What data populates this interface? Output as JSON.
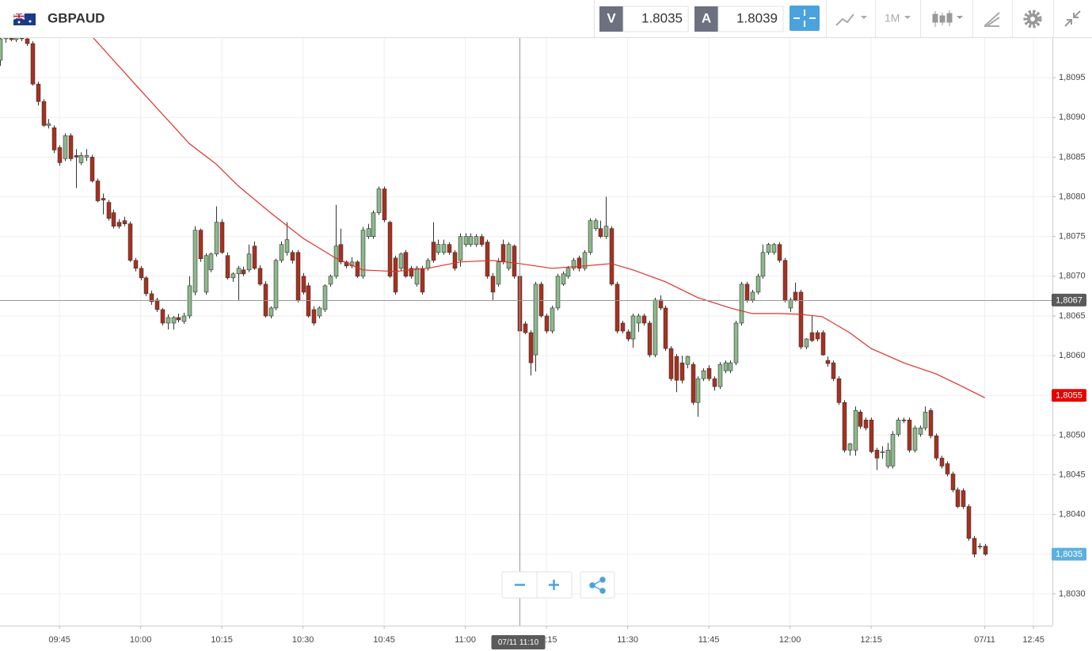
{
  "toolbar": {
    "symbol": "GBPAUD",
    "bid_label": "V",
    "bid": 1.8035,
    "ask_label": "A",
    "ask": 1.8039,
    "period": "1M"
  },
  "chart_data": {
    "type": "candlestick",
    "up_color": "#8cb98a",
    "down_color": "#a8301f",
    "wick_color": "#333333",
    "grid": true,
    "xlim": [
      0,
      194.5
    ],
    "ylim": [
      1.8026,
      1.81
    ],
    "xticks": [
      {
        "value": 11,
        "label": "09:45"
      },
      {
        "value": 26,
        "label": "10:00"
      },
      {
        "value": 41,
        "label": "10:15"
      },
      {
        "value": 56,
        "label": "10:30"
      },
      {
        "value": 71,
        "label": "10:45"
      },
      {
        "value": 86,
        "label": "11:00"
      },
      {
        "value": 101,
        "label": "11:15"
      },
      {
        "value": 116,
        "label": "11:30"
      },
      {
        "value": 131,
        "label": "11:45"
      },
      {
        "value": 146,
        "label": "12:00"
      },
      {
        "value": 161,
        "label": "12:15"
      },
      {
        "value": 182,
        "label": "07/11"
      },
      {
        "value": 191,
        "label": "12:45"
      }
    ],
    "yticks": [
      {
        "value": 1.803,
        "label": "1,8030"
      },
      {
        "value": 1.8035,
        "label": "1,8035"
      },
      {
        "value": 1.804,
        "label": "1,8040"
      },
      {
        "value": 1.8045,
        "label": "1,8045"
      },
      {
        "value": 1.805,
        "label": "1,8050"
      },
      {
        "value": 1.8055,
        "label": "1,8055"
      },
      {
        "value": 1.806,
        "label": "1,8060"
      },
      {
        "value": 1.8065,
        "label": "1,8065"
      },
      {
        "value": 1.807,
        "label": "1,8070"
      },
      {
        "value": 1.8075,
        "label": "1,8075"
      },
      {
        "value": 1.808,
        "label": "1,8080"
      },
      {
        "value": 1.8085,
        "label": "1,8085"
      },
      {
        "value": 1.809,
        "label": "1,8090"
      },
      {
        "value": 1.8095,
        "label": "1,8095"
      }
    ],
    "ohlc": [
      [
        1.80972,
        1.81005,
        1.80965,
        1.80999
      ],
      [
        1.80999,
        1.81006,
        1.80994,
        1.81002
      ],
      [
        1.81002,
        1.81006,
        1.80996,
        1.80998
      ],
      [
        1.80998,
        1.81005,
        1.80995,
        1.81003
      ],
      [
        1.81003,
        1.81006,
        1.80996,
        1.80999
      ],
      [
        1.80999,
        1.81004,
        1.8099,
        1.80993
      ],
      [
        1.80993,
        1.80996,
        1.8094,
        1.80942
      ],
      [
        1.80942,
        1.80945,
        1.80915,
        1.8092
      ],
      [
        1.8092,
        1.80923,
        1.80888,
        1.8089
      ],
      [
        1.8089,
        1.80898,
        1.80886,
        1.80892
      ],
      [
        1.80887,
        1.8089,
        1.80855,
        1.80859
      ],
      [
        1.80862,
        1.80865,
        1.80839,
        1.80843
      ],
      [
        1.80848,
        1.8088,
        1.80845,
        1.80877
      ],
      [
        1.80877,
        1.8088,
        1.80845,
        1.80848
      ],
      [
        1.80852,
        1.8086,
        1.80811,
        1.8085
      ],
      [
        1.80843,
        1.80856,
        1.8084,
        1.80852
      ],
      [
        1.8085,
        1.8086,
        1.80845,
        1.80852
      ],
      [
        1.8085,
        1.80853,
        1.80818,
        1.8082
      ],
      [
        1.8082,
        1.80823,
        1.80793,
        1.80795
      ],
      [
        1.80798,
        1.80804,
        1.80778,
        1.80796
      ],
      [
        1.80793,
        1.80796,
        1.8077,
        1.80773
      ],
      [
        1.8078,
        1.80784,
        1.8076,
        1.80763
      ],
      [
        1.80768,
        1.80772,
        1.8076,
        1.80763
      ],
      [
        1.8077,
        1.80775,
        1.80763,
        1.80766
      ],
      [
        1.80766,
        1.80769,
        1.80718,
        1.8072
      ],
      [
        1.8072,
        1.80723,
        1.80706,
        1.8071
      ],
      [
        1.8071,
        1.80713,
        1.80695,
        1.80698
      ],
      [
        1.80698,
        1.807,
        1.80675,
        1.80678
      ],
      [
        1.80678,
        1.80682,
        1.80664,
        1.80668
      ],
      [
        1.8067,
        1.80673,
        1.80655,
        1.80658
      ],
      [
        1.80658,
        1.8066,
        1.80638,
        1.80641
      ],
      [
        1.80641,
        1.80652,
        1.80633,
        1.80648
      ],
      [
        1.80641,
        1.8065,
        1.80633,
        1.80648
      ],
      [
        1.80648,
        1.80653,
        1.80642,
        1.80645
      ],
      [
        1.80643,
        1.80654,
        1.8064,
        1.8065
      ],
      [
        1.8065,
        1.807,
        1.80647,
        1.80688
      ],
      [
        1.8068,
        1.80763,
        1.80676,
        1.80758
      ],
      [
        1.80758,
        1.8076,
        1.80718,
        1.80722
      ],
      [
        1.8068,
        1.80729,
        1.80677,
        1.80726
      ],
      [
        1.80708,
        1.8073,
        1.80705,
        1.80728
      ],
      [
        1.80728,
        1.80788,
        1.80725,
        1.80768
      ],
      [
        1.80768,
        1.80772,
        1.80728,
        1.8073
      ],
      [
        1.80726,
        1.8073,
        1.80696,
        1.80698
      ],
      [
        1.80698,
        1.80705,
        1.80693,
        1.80703
      ],
      [
        1.80703,
        1.80713,
        1.8067,
        1.8071
      ],
      [
        1.80708,
        1.80712,
        1.807,
        1.80703
      ],
      [
        1.80708,
        1.8074,
        1.80705,
        1.80728
      ],
      [
        1.80738,
        1.80744,
        1.80708,
        1.8071
      ],
      [
        1.8071,
        1.80714,
        1.80688,
        1.8069
      ],
      [
        1.8069,
        1.80694,
        1.80648,
        1.8065
      ],
      [
        1.8065,
        1.80662,
        1.80647,
        1.8066
      ],
      [
        1.8066,
        1.80722,
        1.80657,
        1.8072
      ],
      [
        1.8072,
        1.80744,
        1.80717,
        1.8074
      ],
      [
        1.8073,
        1.80768,
        1.80726,
        1.80746
      ],
      [
        1.8073,
        1.80733,
        1.80716,
        1.8072
      ],
      [
        1.8073,
        1.80733,
        1.80667,
        1.8067
      ],
      [
        1.807,
        1.80704,
        1.80677,
        1.8068
      ],
      [
        1.80688,
        1.80692,
        1.80648,
        1.8065
      ],
      [
        1.80658,
        1.80662,
        1.80638,
        1.80641
      ],
      [
        1.8065,
        1.80662,
        1.80647,
        1.8066
      ],
      [
        1.80658,
        1.8069,
        1.80655,
        1.80688
      ],
      [
        1.8069,
        1.80702,
        1.80687,
        1.807
      ],
      [
        1.807,
        1.8079,
        1.80697,
        1.80738
      ],
      [
        1.8074,
        1.8076,
        1.80715,
        1.80718
      ],
      [
        1.80718,
        1.8072,
        1.8071,
        1.80713
      ],
      [
        1.80713,
        1.80724,
        1.8071,
        1.80718
      ],
      [
        1.80718,
        1.8072,
        1.80698,
        1.807
      ],
      [
        1.807,
        1.80762,
        1.80697,
        1.80758
      ],
      [
        1.8075,
        1.80766,
        1.80747,
        1.8076
      ],
      [
        1.8075,
        1.80783,
        1.80747,
        1.8078
      ],
      [
        1.8078,
        1.80813,
        1.80777,
        1.8081
      ],
      [
        1.8081,
        1.80813,
        1.80768,
        1.80771
      ],
      [
        1.80768,
        1.8077,
        1.80698,
        1.807
      ],
      [
        1.80723,
        1.80726,
        1.80677,
        1.8068
      ],
      [
        1.8071,
        1.8073,
        1.80707,
        1.80728
      ],
      [
        1.8073,
        1.80733,
        1.80698,
        1.807
      ],
      [
        1.8071,
        1.80713,
        1.80697,
        1.807
      ],
      [
        1.8069,
        1.80713,
        1.80687,
        1.8071
      ],
      [
        1.8071,
        1.80713,
        1.80677,
        1.8068
      ],
      [
        1.8071,
        1.80723,
        1.80707,
        1.8072
      ],
      [
        1.80743,
        1.80768,
        1.80717,
        1.8072
      ],
      [
        1.8073,
        1.80746,
        1.80727,
        1.8074
      ],
      [
        1.8073,
        1.80746,
        1.80727,
        1.8074
      ],
      [
        1.8074,
        1.80743,
        1.80727,
        1.8073
      ],
      [
        1.8073,
        1.80733,
        1.80707,
        1.8071
      ],
      [
        1.8072,
        1.80754,
        1.80712,
        1.8075
      ],
      [
        1.8074,
        1.80754,
        1.80737,
        1.8075
      ],
      [
        1.8074,
        1.80754,
        1.80737,
        1.8075
      ],
      [
        1.8074,
        1.80753,
        1.80737,
        1.8075
      ],
      [
        1.8075,
        1.80753,
        1.80737,
        1.8074
      ],
      [
        1.80743,
        1.80746,
        1.80697,
        1.807
      ],
      [
        1.807,
        1.80704,
        1.8067,
        1.8068
      ],
      [
        1.8069,
        1.80723,
        1.80687,
        1.80718
      ],
      [
        1.8074,
        1.80746,
        1.80715,
        1.80718
      ],
      [
        1.8071,
        1.80743,
        1.80707,
        1.8074
      ],
      [
        1.80738,
        1.8074,
        1.80697,
        1.807
      ],
      [
        1.807,
        1.80703,
        1.8063,
        1.80631
      ],
      [
        1.8064,
        1.80643,
        1.80627,
        1.80629
      ],
      [
        1.80629,
        1.80632,
        1.80575,
        1.80591
      ],
      [
        1.80601,
        1.80693,
        1.8058,
        1.8069
      ],
      [
        1.8069,
        1.80693,
        1.80648,
        1.8065
      ],
      [
        1.8065,
        1.80653,
        1.80628,
        1.80631
      ],
      [
        1.80631,
        1.80663,
        1.80628,
        1.8066
      ],
      [
        1.8066,
        1.80703,
        1.80657,
        1.807
      ],
      [
        1.8069,
        1.80706,
        1.80688,
        1.80703
      ],
      [
        1.807,
        1.80713,
        1.80697,
        1.8071
      ],
      [
        1.8071,
        1.80723,
        1.80707,
        1.8072
      ],
      [
        1.80723,
        1.80726,
        1.80706,
        1.8071
      ],
      [
        1.8071,
        1.80733,
        1.80707,
        1.8073
      ],
      [
        1.8073,
        1.80773,
        1.80727,
        1.8077
      ],
      [
        1.8076,
        1.80773,
        1.80757,
        1.8077
      ],
      [
        1.8076,
        1.8077,
        1.80748,
        1.8075
      ],
      [
        1.8075,
        1.808,
        1.80747,
        1.80763
      ],
      [
        1.8076,
        1.80763,
        1.80688,
        1.8069
      ],
      [
        1.8069,
        1.80693,
        1.80628,
        1.80631
      ],
      [
        1.80641,
        1.80644,
        1.80628,
        1.80631
      ],
      [
        1.8063,
        1.80633,
        1.80618,
        1.80621
      ],
      [
        1.80621,
        1.80653,
        1.8061,
        1.8065
      ],
      [
        1.80641,
        1.80653,
        1.8063,
        1.8065
      ],
      [
        1.8065,
        1.80653,
        1.80638,
        1.80641
      ],
      [
        1.80641,
        1.80644,
        1.80598,
        1.80601
      ],
      [
        1.80601,
        1.80673,
        1.80598,
        1.8067
      ],
      [
        1.8067,
        1.80676,
        1.80657,
        1.8066
      ],
      [
        1.8066,
        1.80663,
        1.80606,
        1.80609
      ],
      [
        1.80609,
        1.80612,
        1.80568,
        1.80571
      ],
      [
        1.80599,
        1.80602,
        1.80554,
        1.80569
      ],
      [
        1.80591,
        1.806,
        1.80565,
        1.80569
      ],
      [
        1.80589,
        1.806,
        1.80584,
        1.80599
      ],
      [
        1.80589,
        1.80592,
        1.80538,
        1.80541
      ],
      [
        1.80541,
        1.80574,
        1.80523,
        1.80571
      ],
      [
        1.80571,
        1.80584,
        1.80568,
        1.80581
      ],
      [
        1.80584,
        1.80588,
        1.80568,
        1.80571
      ],
      [
        1.80571,
        1.80574,
        1.80556,
        1.80561
      ],
      [
        1.80561,
        1.80592,
        1.80558,
        1.80589
      ],
      [
        1.80581,
        1.80594,
        1.80578,
        1.80591
      ],
      [
        1.80581,
        1.80594,
        1.80578,
        1.80591
      ],
      [
        1.80591,
        1.80644,
        1.80588,
        1.80641
      ],
      [
        1.80641,
        1.80693,
        1.80638,
        1.8069
      ],
      [
        1.8069,
        1.80693,
        1.80667,
        1.8067
      ],
      [
        1.8067,
        1.80683,
        1.80667,
        1.8068
      ],
      [
        1.8068,
        1.80703,
        1.80677,
        1.807
      ],
      [
        1.807,
        1.8074,
        1.80697,
        1.8073
      ],
      [
        1.8073,
        1.80742,
        1.80727,
        1.8074
      ],
      [
        1.8073,
        1.80742,
        1.80727,
        1.8074
      ],
      [
        1.8074,
        1.80743,
        1.80717,
        1.8072
      ],
      [
        1.8072,
        1.80723,
        1.80667,
        1.8067
      ],
      [
        1.8066,
        1.80673,
        1.80655,
        1.8067
      ],
      [
        1.8068,
        1.80692,
        1.80668,
        1.8067
      ],
      [
        1.8068,
        1.80683,
        1.80608,
        1.80611
      ],
      [
        1.80611,
        1.80622,
        1.80608,
        1.80621
      ],
      [
        1.80629,
        1.8065,
        1.80617,
        1.80619
      ],
      [
        1.80629,
        1.80632,
        1.80618,
        1.80621
      ],
      [
        1.80629,
        1.80632,
        1.806,
        1.80601
      ],
      [
        1.80594,
        1.80599,
        1.80586,
        1.8059
      ],
      [
        1.80591,
        1.80594,
        1.80568,
        1.80571
      ],
      [
        1.80571,
        1.80574,
        1.80538,
        1.80541
      ],
      [
        1.80541,
        1.80544,
        1.80478,
        1.80481
      ],
      [
        1.80481,
        1.8049,
        1.80474,
        1.80489
      ],
      [
        1.80481,
        1.80536,
        1.80474,
        1.80531
      ],
      [
        1.80529,
        1.80532,
        1.80508,
        1.80511
      ],
      [
        1.80519,
        1.80522,
        1.80506,
        1.80509
      ],
      [
        1.80519,
        1.80522,
        1.80477,
        1.80479
      ],
      [
        1.80481,
        1.80484,
        1.80456,
        1.80471
      ],
      [
        1.80479,
        1.80486,
        1.8047,
        1.80479
      ],
      [
        1.80461,
        1.8049,
        1.80458,
        1.80481
      ],
      [
        1.80461,
        1.80505,
        1.80458,
        1.80501
      ],
      [
        1.80501,
        1.80522,
        1.80498,
        1.80519
      ],
      [
        1.80519,
        1.80522,
        1.80515,
        1.80518
      ],
      [
        1.80519,
        1.80522,
        1.80478,
        1.80481
      ],
      [
        1.80481,
        1.80512,
        1.80478,
        1.80509
      ],
      [
        1.80501,
        1.80512,
        1.80498,
        1.80509
      ],
      [
        1.80509,
        1.80536,
        1.80506,
        1.80529
      ],
      [
        1.80531,
        1.80534,
        1.80496,
        1.80499
      ],
      [
        1.80499,
        1.80502,
        1.80468,
        1.80471
      ],
      [
        1.80471,
        1.80474,
        1.80458,
        1.80461
      ],
      [
        1.80464,
        1.80467,
        1.80448,
        1.80451
      ],
      [
        1.80451,
        1.80454,
        1.80428,
        1.80431
      ],
      [
        1.80431,
        1.80434,
        1.80408,
        1.8041
      ],
      [
        1.8043,
        1.80433,
        1.80407,
        1.8041
      ],
      [
        1.8041,
        1.80413,
        1.80367,
        1.8037
      ],
      [
        1.8037,
        1.80373,
        1.80346,
        1.8035
      ],
      [
        1.8036,
        1.80364,
        1.80356,
        1.80359
      ],
      [
        1.8036,
        1.80363,
        1.80348,
        1.8035
      ]
    ],
    "moving_average": {
      "color": "#e0302a",
      "x": [
        17,
        26,
        35,
        40,
        44,
        50,
        56,
        62,
        67,
        73,
        79,
        85,
        91,
        96,
        102,
        108,
        113,
        117,
        123,
        129,
        135,
        139,
        144,
        148,
        152,
        157,
        161,
        167,
        173,
        177,
        182
      ],
      "values": [
        1.81002,
        1.80934,
        1.80867,
        1.80841,
        1.80814,
        1.8078,
        1.80748,
        1.80723,
        1.80708,
        1.80706,
        1.8071,
        1.80718,
        1.8072,
        1.80716,
        1.8071,
        1.80713,
        1.80716,
        1.80708,
        1.80693,
        1.80673,
        1.8066,
        1.80653,
        1.80653,
        1.80652,
        1.80649,
        1.80629,
        1.80609,
        1.80591,
        1.80577,
        1.80564,
        1.80547
      ]
    },
    "crosshair": {
      "x": 96,
      "y": 1.8067,
      "label_x": "07/11 11:10",
      "label_y": "1,8067",
      "color": "#5a5a5a"
    },
    "price_labels": [
      {
        "value": 1.8055,
        "label": "1,8055",
        "color": "#e60000"
      },
      {
        "value": 1.8035,
        "label": "1,8035",
        "color": "#5cb0e0"
      }
    ]
  }
}
